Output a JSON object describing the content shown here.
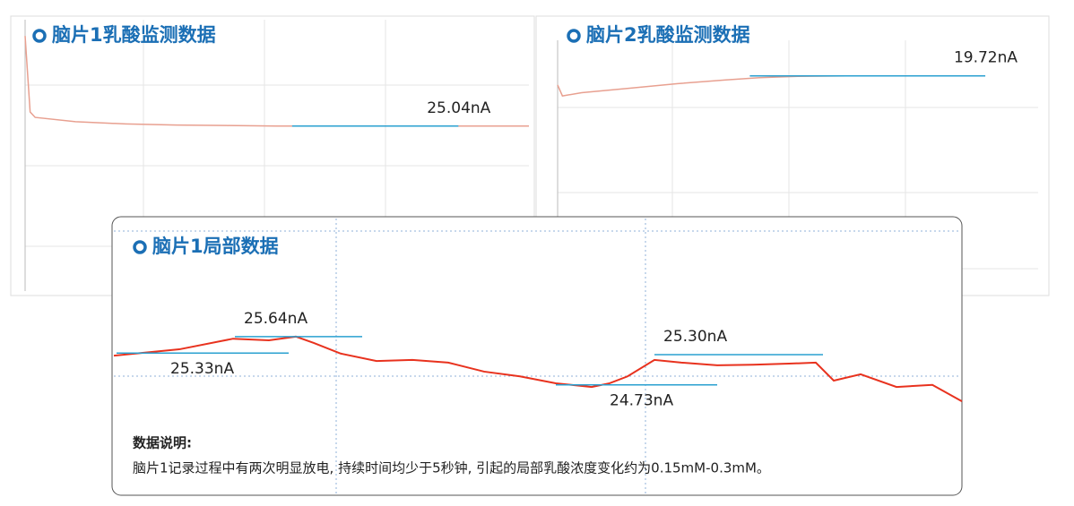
{
  "chart_data": [
    {
      "type": "line",
      "title": "脑片1乳酸监测数据",
      "xlim": [
        0,
        100
      ],
      "ylim": [
        22,
        27
      ],
      "series": [
        {
          "color": "#e8a090",
          "x": [
            0,
            1,
            2,
            10,
            20,
            30,
            40,
            50,
            60,
            70,
            80,
            90,
            100
          ],
          "values": [
            26.7,
            25.3,
            25.2,
            25.12,
            25.08,
            25.06,
            25.05,
            25.04,
            25.04,
            25.04,
            25.04,
            25.04,
            25.04
          ]
        }
      ],
      "annotations": [
        {
          "value": 25.04,
          "label": "25.04nA",
          "x": [
            53,
            86
          ],
          "position": "above"
        }
      ]
    },
    {
      "type": "line",
      "title": "脑片2乳酸监测数据",
      "xlim": [
        0,
        100
      ],
      "ylim": [
        15,
        20.5
      ],
      "series": [
        {
          "color": "#e8a090",
          "x": [
            0,
            1,
            5,
            15,
            25,
            35,
            42,
            50,
            60,
            70,
            80,
            89
          ],
          "values": [
            19.52,
            19.28,
            19.35,
            19.45,
            19.55,
            19.63,
            19.68,
            19.71,
            19.72,
            19.72,
            19.72,
            19.72
          ]
        }
      ],
      "annotations": [
        {
          "value": 19.72,
          "label": "19.72nA",
          "x": [
            40,
            89
          ],
          "position": "above"
        }
      ]
    },
    {
      "type": "line",
      "title": "脑片1局部数据",
      "xlim": [
        0,
        946
      ],
      "ylim": [
        24,
        28
      ],
      "series": [
        {
          "color": "#e8321e",
          "x": [
            0,
            73,
            133,
            173,
            203,
            223,
            253,
            293,
            333,
            373,
            413,
            453,
            493,
            533,
            553,
            573,
            603,
            633,
            673,
            713,
            753,
            783,
            803,
            833,
            873,
            913,
            946
          ],
          "values": [
            25.28,
            25.4,
            25.6,
            25.57,
            25.64,
            25.52,
            25.32,
            25.18,
            25.2,
            25.15,
            24.98,
            24.89,
            24.76,
            24.69,
            24.76,
            24.89,
            25.2,
            25.15,
            25.1,
            25.11,
            25.13,
            25.15,
            24.81,
            24.93,
            24.69,
            24.73,
            24.42
          ]
        }
      ],
      "annotations": [
        {
          "value": 25.64,
          "label": "25.64nA",
          "x": [
            135,
            277
          ],
          "position": "above"
        },
        {
          "value": 25.33,
          "label": "25.33nA",
          "x": [
            3,
            195
          ],
          "position": "below"
        },
        {
          "value": 25.3,
          "label": "25.30nA",
          "x": [
            603,
            791
          ],
          "position": "above"
        },
        {
          "value": 24.73,
          "label": "24.73nA",
          "x": [
            493,
            673
          ],
          "position": "below"
        }
      ],
      "notes_title": "数据说明:",
      "notes": "脑片1记录过程中有两次明显放电, 持续时间均少于5秒钟, 引起的局部乳酸浓度变化约为0.15mM-0.3mM。"
    }
  ]
}
